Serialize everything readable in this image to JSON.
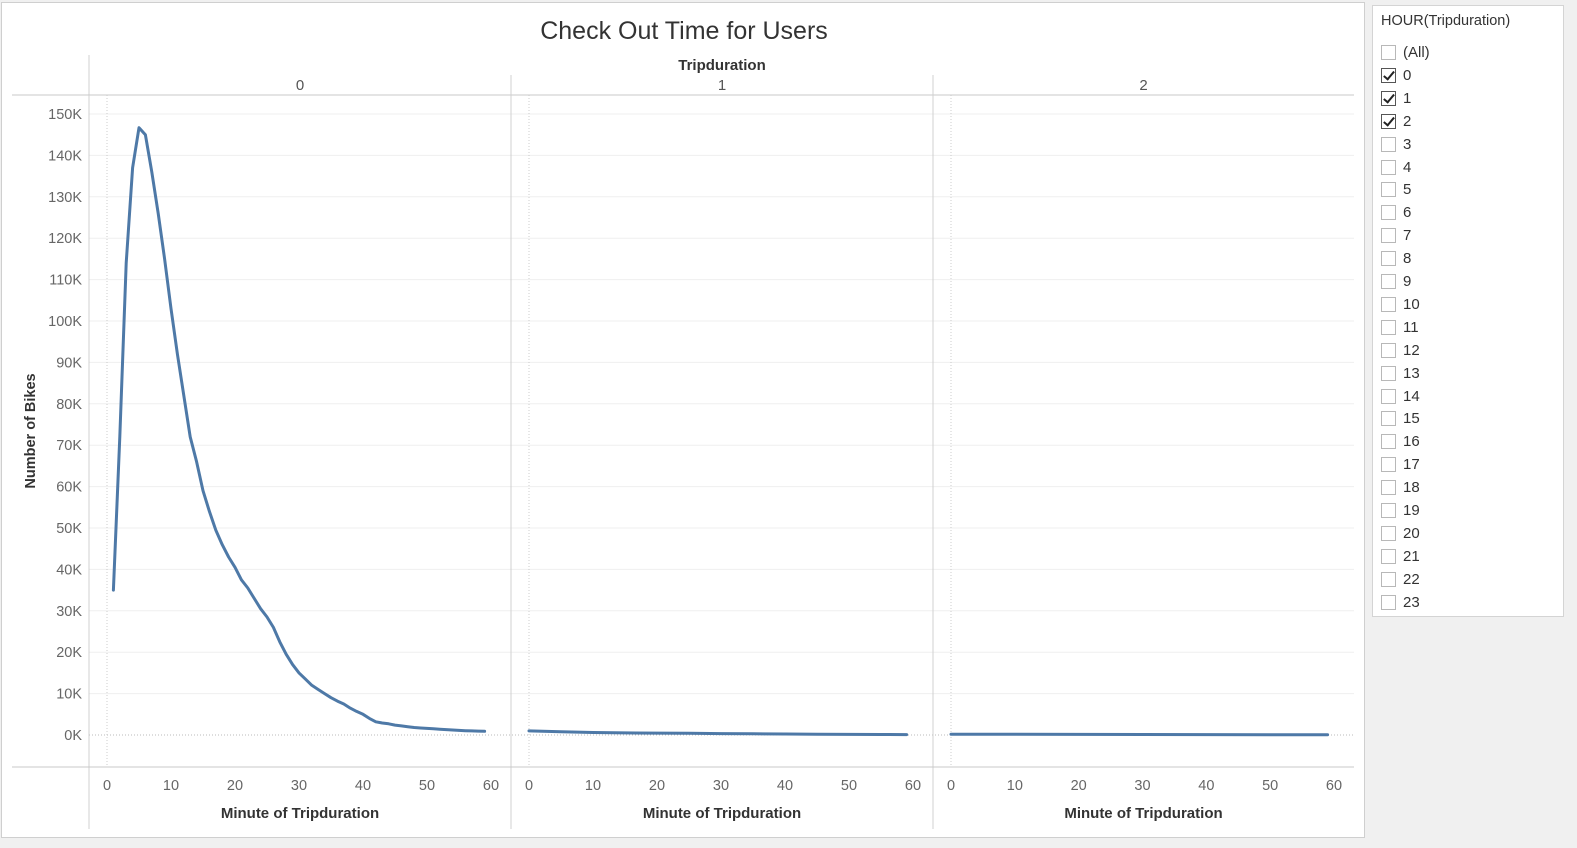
{
  "chart_data": {
    "type": "line",
    "title": "Check Out Time for Users",
    "column_header": "Tripduration",
    "panels": [
      "0",
      "1",
      "2"
    ],
    "xlabel": "Minute of Tripduration",
    "ylabel": "Number of Bikes",
    "xlim": [
      0,
      60
    ],
    "ylim": [
      0,
      150000
    ],
    "x_ticks": [
      0,
      10,
      20,
      30,
      40,
      50,
      60
    ],
    "y_ticks": [
      0,
      10000,
      20000,
      30000,
      40000,
      50000,
      60000,
      70000,
      80000,
      90000,
      100000,
      110000,
      120000,
      130000,
      140000,
      150000
    ],
    "y_tick_labels": [
      "0K",
      "10K",
      "20K",
      "30K",
      "40K",
      "50K",
      "60K",
      "70K",
      "80K",
      "90K",
      "100K",
      "110K",
      "120K",
      "130K",
      "140K",
      "150K"
    ],
    "line_color": "#4e79a7",
    "grid": true,
    "series": [
      {
        "x": [
          1,
          2,
          3,
          4,
          5,
          6,
          7,
          8,
          9,
          10,
          11,
          12,
          13,
          14,
          15,
          16,
          17,
          18,
          19,
          20,
          21,
          22,
          23,
          24,
          25,
          26,
          27,
          28,
          29,
          30,
          31,
          32,
          33,
          34,
          35,
          36,
          37,
          38,
          39,
          40,
          41,
          42,
          43,
          44,
          45,
          46,
          47,
          48,
          49,
          50,
          51,
          52,
          53,
          54,
          55,
          56,
          57,
          58,
          59
        ],
        "y": [
          35000,
          72000,
          114000,
          137000,
          146700,
          145000,
          136000,
          126000,
          115000,
          103000,
          92000,
          82000,
          72000,
          66000,
          59000,
          54000,
          49500,
          46000,
          43000,
          40500,
          37500,
          35500,
          33000,
          30500,
          28500,
          26000,
          22500,
          19500,
          17000,
          15000,
          13500,
          12000,
          11000,
          10000,
          9000,
          8200,
          7500,
          6500,
          5700,
          5000,
          4000,
          3200,
          2900,
          2700,
          2400,
          2200,
          2000,
          1800,
          1700,
          1600,
          1500,
          1400,
          1300,
          1200,
          1100,
          1050,
          1000,
          950,
          900
        ]
      },
      {
        "x": [
          0,
          5,
          10,
          15,
          20,
          25,
          30,
          35,
          40,
          45,
          50,
          55,
          59
        ],
        "y": [
          1000,
          800,
          600,
          500,
          450,
          400,
          350,
          300,
          250,
          200,
          150,
          120,
          100
        ]
      },
      {
        "x": [
          0,
          10,
          20,
          30,
          40,
          50,
          59
        ],
        "y": [
          200,
          180,
          150,
          120,
          100,
          80,
          60
        ]
      }
    ]
  },
  "filter": {
    "title": "HOUR(Tripduration)",
    "items": [
      {
        "label": "(All)",
        "checked": false
      },
      {
        "label": "0",
        "checked": true
      },
      {
        "label": "1",
        "checked": true
      },
      {
        "label": "2",
        "checked": true
      },
      {
        "label": "3",
        "checked": false
      },
      {
        "label": "4",
        "checked": false
      },
      {
        "label": "5",
        "checked": false
      },
      {
        "label": "6",
        "checked": false
      },
      {
        "label": "7",
        "checked": false
      },
      {
        "label": "8",
        "checked": false
      },
      {
        "label": "9",
        "checked": false
      },
      {
        "label": "10",
        "checked": false
      },
      {
        "label": "11",
        "checked": false
      },
      {
        "label": "12",
        "checked": false
      },
      {
        "label": "13",
        "checked": false
      },
      {
        "label": "14",
        "checked": false
      },
      {
        "label": "15",
        "checked": false
      },
      {
        "label": "16",
        "checked": false
      },
      {
        "label": "17",
        "checked": false
      },
      {
        "label": "18",
        "checked": false
      },
      {
        "label": "19",
        "checked": false
      },
      {
        "label": "20",
        "checked": false
      },
      {
        "label": "21",
        "checked": false
      },
      {
        "label": "22",
        "checked": false
      },
      {
        "label": "23",
        "checked": false
      }
    ]
  }
}
